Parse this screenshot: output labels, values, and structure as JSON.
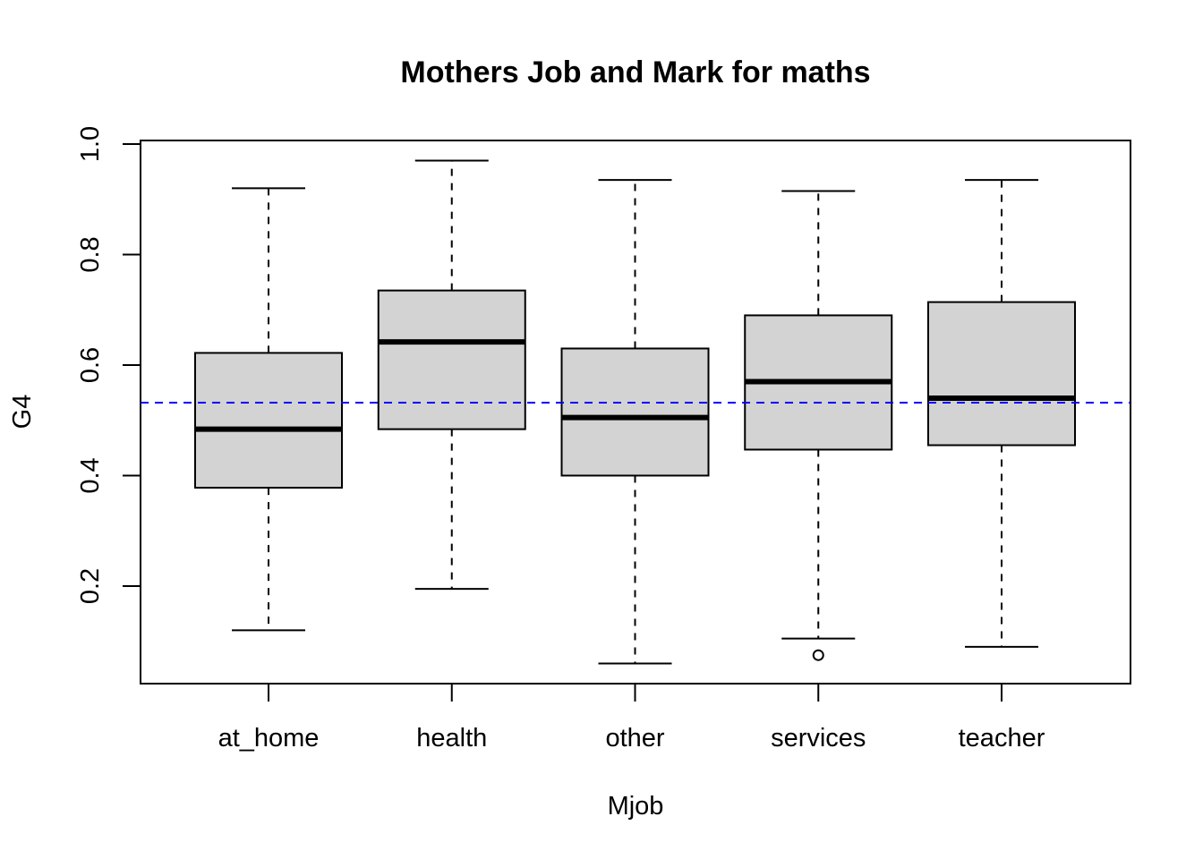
{
  "chart_data": {
    "type": "boxplot",
    "title": "Mothers Job and Mark for maths",
    "xlabel": "Mjob",
    "ylabel": "G4",
    "ylim": [
      0.03,
      1.0
    ],
    "yticks": [
      0.2,
      0.4,
      0.6,
      0.8,
      1.0
    ],
    "ytick_labels": [
      "0.2",
      "0.4",
      "0.6",
      "0.8",
      "1.0"
    ],
    "categories": [
      "at_home",
      "health",
      "other",
      "services",
      "teacher"
    ],
    "boxes": [
      {
        "name": "at_home",
        "whisker_low": 0.12,
        "q1": 0.378,
        "median": 0.484,
        "q3": 0.622,
        "whisker_high": 0.92,
        "outliers": []
      },
      {
        "name": "health",
        "whisker_low": 0.195,
        "q1": 0.484,
        "median": 0.642,
        "q3": 0.735,
        "whisker_high": 0.97,
        "outliers": []
      },
      {
        "name": "other",
        "whisker_low": 0.06,
        "q1": 0.4,
        "median": 0.505,
        "q3": 0.63,
        "whisker_high": 0.935,
        "outliers": []
      },
      {
        "name": "services",
        "whisker_low": 0.105,
        "q1": 0.447,
        "median": 0.57,
        "q3": 0.69,
        "whisker_high": 0.915,
        "outliers": [
          0.075
        ]
      },
      {
        "name": "teacher",
        "whisker_low": 0.09,
        "q1": 0.455,
        "median": 0.54,
        "q3": 0.714,
        "whisker_high": 0.935,
        "outliers": []
      }
    ],
    "reference_line": {
      "y": 0.532,
      "color": "#0000ff",
      "style": "dashed"
    },
    "box_fill": "#d3d3d3",
    "grid": false,
    "legend": "none"
  }
}
